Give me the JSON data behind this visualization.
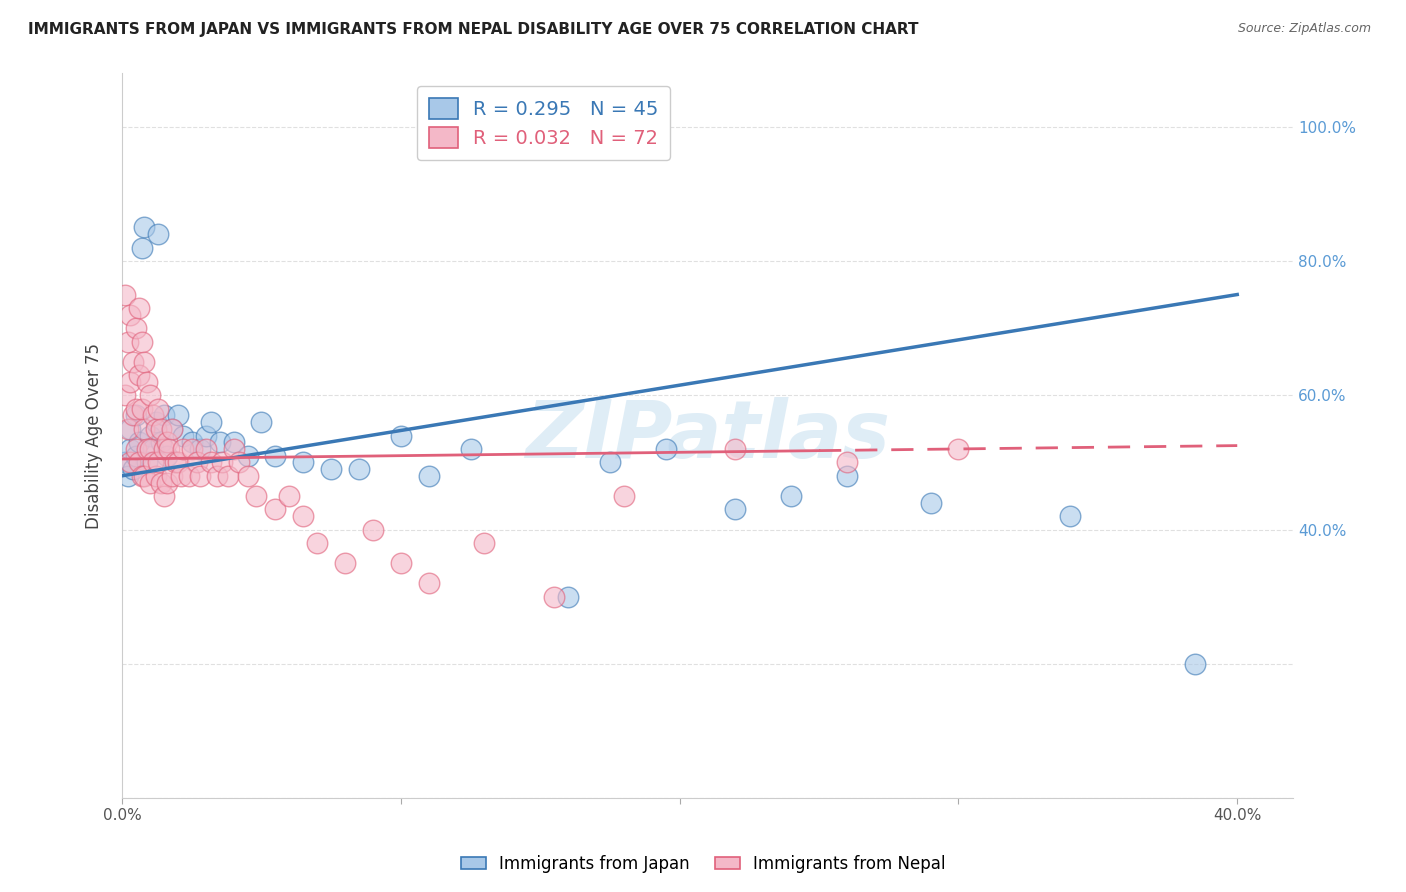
{
  "title": "IMMIGRANTS FROM JAPAN VS IMMIGRANTS FROM NEPAL DISABILITY AGE OVER 75 CORRELATION CHART",
  "source": "Source: ZipAtlas.com",
  "ylabel": "Disability Age Over 75",
  "xlim": [
    0.0,
    0.42
  ],
  "ylim": [
    0.0,
    1.08
  ],
  "japan_R": 0.295,
  "japan_N": 45,
  "nepal_R": 0.032,
  "nepal_N": 72,
  "japan_color": "#a8c8e8",
  "nepal_color": "#f4b8c8",
  "japan_line_color": "#3a78b5",
  "nepal_line_color": "#e0607a",
  "watermark": "ZIPatlas",
  "legend_japan": "Immigrants from Japan",
  "legend_nepal": "Immigrants from Nepal",
  "japan_scatter_x": [
    0.001,
    0.002,
    0.003,
    0.003,
    0.004,
    0.005,
    0.005,
    0.006,
    0.007,
    0.008,
    0.009,
    0.01,
    0.011,
    0.012,
    0.013,
    0.014,
    0.015,
    0.016,
    0.018,
    0.02,
    0.022,
    0.025,
    0.028,
    0.03,
    0.032,
    0.035,
    0.04,
    0.045,
    0.05,
    0.055,
    0.065,
    0.075,
    0.085,
    0.1,
    0.11,
    0.125,
    0.16,
    0.175,
    0.195,
    0.22,
    0.24,
    0.26,
    0.29,
    0.34,
    0.385
  ],
  "japan_scatter_y": [
    0.5,
    0.48,
    0.52,
    0.55,
    0.49,
    0.51,
    0.57,
    0.53,
    0.82,
    0.85,
    0.5,
    0.54,
    0.52,
    0.56,
    0.84,
    0.53,
    0.57,
    0.51,
    0.55,
    0.57,
    0.54,
    0.53,
    0.52,
    0.54,
    0.56,
    0.53,
    0.53,
    0.51,
    0.56,
    0.51,
    0.5,
    0.49,
    0.49,
    0.54,
    0.48,
    0.52,
    0.3,
    0.5,
    0.52,
    0.43,
    0.45,
    0.48,
    0.44,
    0.42,
    0.2
  ],
  "nepal_scatter_x": [
    0.001,
    0.001,
    0.002,
    0.002,
    0.003,
    0.003,
    0.003,
    0.004,
    0.004,
    0.005,
    0.005,
    0.005,
    0.006,
    0.006,
    0.006,
    0.007,
    0.007,
    0.007,
    0.008,
    0.008,
    0.008,
    0.009,
    0.009,
    0.01,
    0.01,
    0.01,
    0.011,
    0.011,
    0.012,
    0.012,
    0.013,
    0.013,
    0.014,
    0.014,
    0.015,
    0.015,
    0.016,
    0.016,
    0.017,
    0.018,
    0.018,
    0.019,
    0.02,
    0.021,
    0.022,
    0.024,
    0.025,
    0.027,
    0.028,
    0.03,
    0.032,
    0.034,
    0.036,
    0.038,
    0.04,
    0.042,
    0.045,
    0.048,
    0.055,
    0.06,
    0.065,
    0.07,
    0.08,
    0.09,
    0.1,
    0.11,
    0.13,
    0.155,
    0.18,
    0.22,
    0.26,
    0.3
  ],
  "nepal_scatter_y": [
    0.75,
    0.6,
    0.68,
    0.55,
    0.72,
    0.62,
    0.5,
    0.65,
    0.57,
    0.7,
    0.58,
    0.52,
    0.73,
    0.63,
    0.5,
    0.68,
    0.58,
    0.48,
    0.65,
    0.55,
    0.48,
    0.62,
    0.52,
    0.6,
    0.52,
    0.47,
    0.57,
    0.5,
    0.55,
    0.48,
    0.58,
    0.5,
    0.55,
    0.47,
    0.52,
    0.45,
    0.53,
    0.47,
    0.52,
    0.55,
    0.48,
    0.5,
    0.5,
    0.48,
    0.52,
    0.48,
    0.52,
    0.5,
    0.48,
    0.52,
    0.5,
    0.48,
    0.5,
    0.48,
    0.52,
    0.5,
    0.48,
    0.45,
    0.43,
    0.45,
    0.42,
    0.38,
    0.35,
    0.4,
    0.35,
    0.32,
    0.38,
    0.3,
    0.45,
    0.52,
    0.5,
    0.52
  ],
  "background_color": "#ffffff",
  "grid_color": "#e0e0e0",
  "japan_line_x": [
    0.0,
    0.4
  ],
  "nepal_line_x_solid_end": 0.25,
  "nepal_line_x_dashed_end": 0.4
}
